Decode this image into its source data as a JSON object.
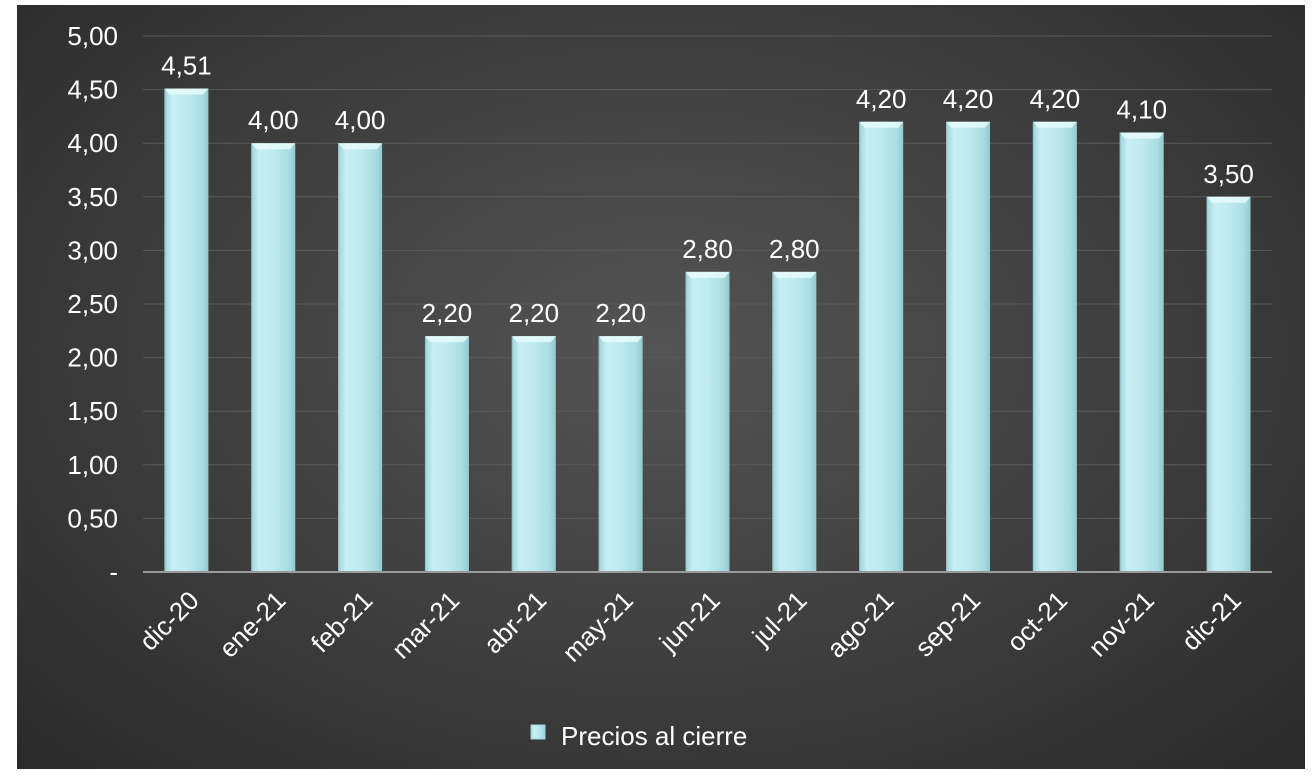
{
  "chart_data": {
    "type": "bar",
    "categories": [
      "dic-20",
      "ene-21",
      "feb-21",
      "mar-21",
      "abr-21",
      "may-21",
      "jun-21",
      "jul-21",
      "ago-21",
      "sep-21",
      "oct-21",
      "nov-21",
      "dic-21"
    ],
    "series": [
      {
        "name": "Precios al cierre",
        "values": [
          4.51,
          4.0,
          4.0,
          2.2,
          2.2,
          2.2,
          2.8,
          2.8,
          4.2,
          4.2,
          4.2,
          4.1,
          3.5
        ],
        "labels": [
          "4,51",
          "4,00",
          "4,00",
          "2,20",
          "2,20",
          "2,20",
          "2,80",
          "2,80",
          "4,20",
          "4,20",
          "4,20",
          "4,10",
          "3,50"
        ]
      }
    ],
    "yticks": [
      0,
      0.5,
      1,
      1.5,
      2,
      2.5,
      3,
      3.5,
      4,
      4.5,
      5
    ],
    "ytick_labels": [
      "-",
      "0,50",
      "1,00",
      "1,50",
      "2,00",
      "2,50",
      "3,00",
      "3,50",
      "4,00",
      "4,50",
      "5,00"
    ],
    "ylim": [
      0,
      5
    ],
    "grid": true,
    "legend_position": "bottom",
    "title": "",
    "xlabel": "",
    "ylabel": "",
    "colors": {
      "bar_fill": "#bde9ee",
      "bar_edge": "#9fd6dc",
      "background": "#404040",
      "gridline": "#5a5a5a",
      "axis": "#9a9a9a",
      "text": "#ffffff"
    }
  }
}
